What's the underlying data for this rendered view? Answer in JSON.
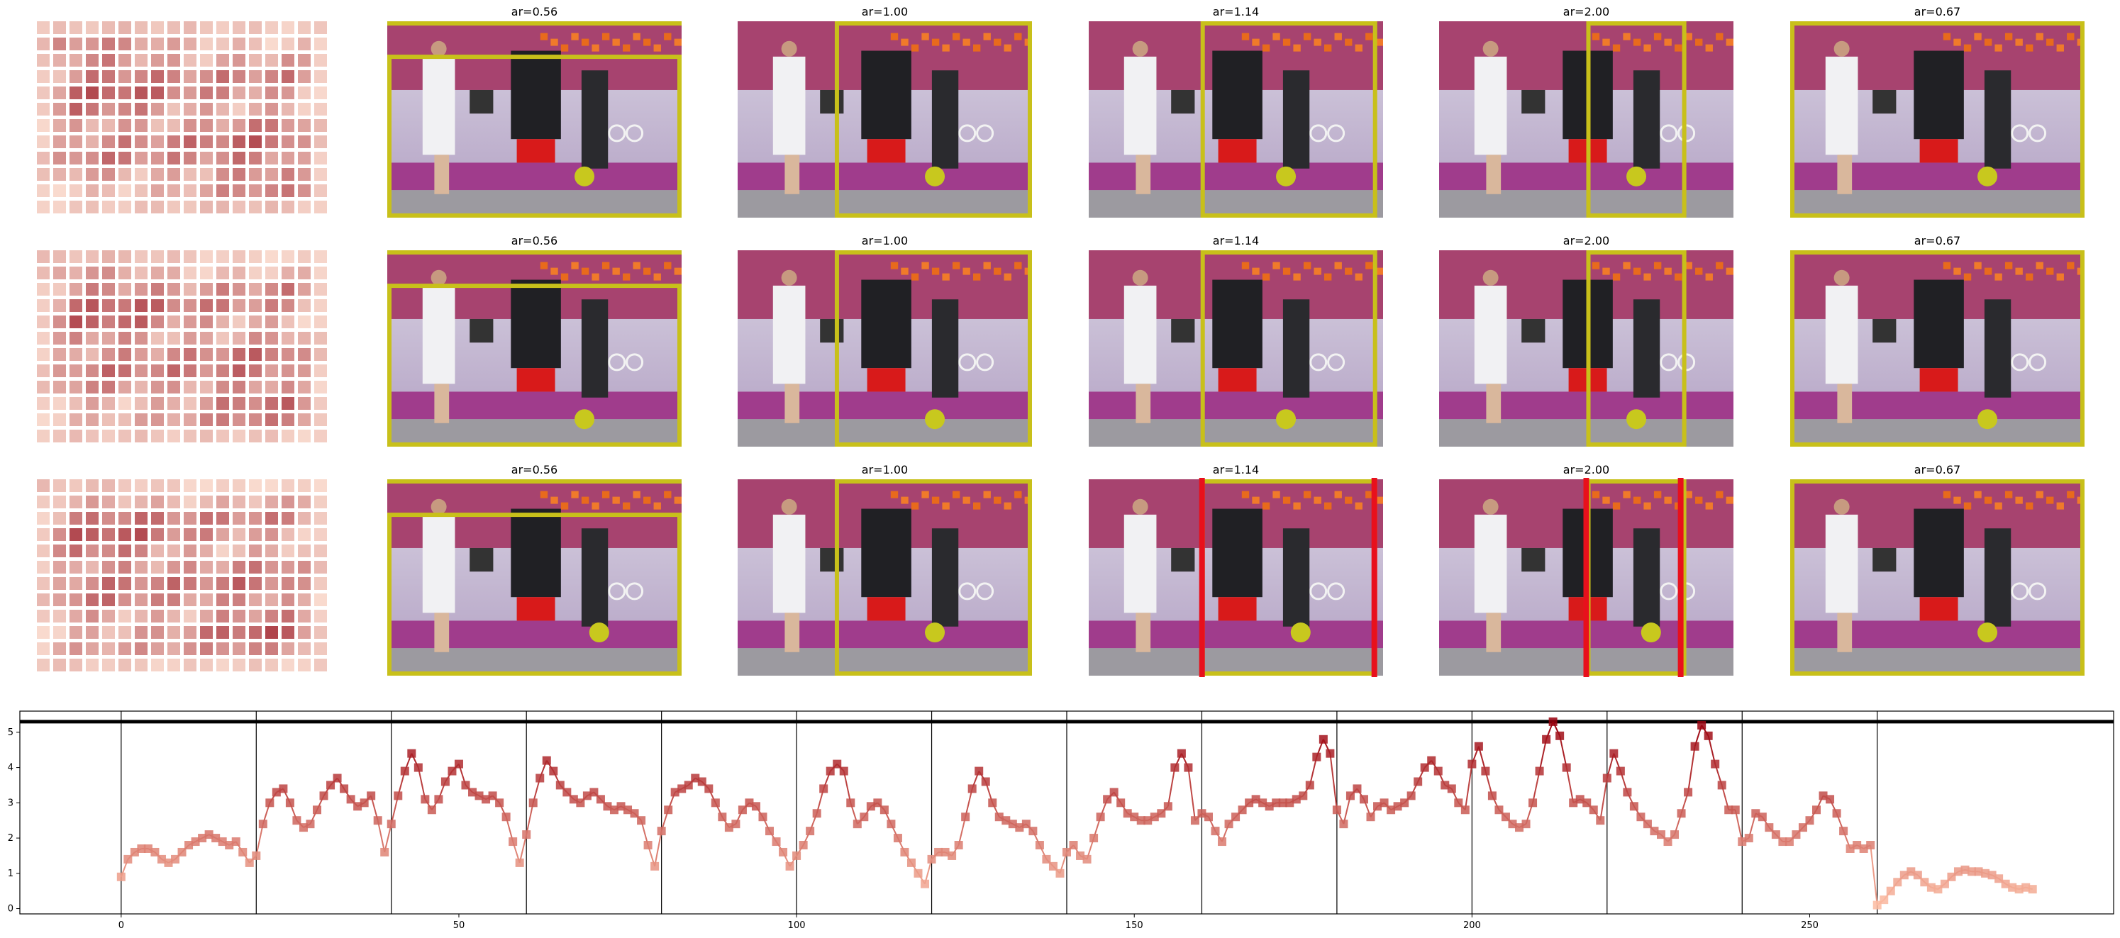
{
  "figure": {
    "panel_titles": [
      "ar=0.56",
      "ar=1.00",
      "ar=1.14",
      "ar=2.00",
      "ar=0.67"
    ],
    "rows": 3,
    "colors": {
      "crop_box": "#c8c01a",
      "marker_dot": "#c8c81e",
      "red_box_edge": "#e8101c",
      "heatmap_low": "#fde3d6",
      "heatmap_high": "#a32a35",
      "series_low": "#fcbba1",
      "series_high": "#99000d"
    }
  },
  "chart_data": {
    "type": "line",
    "title": "",
    "xlabel": "",
    "ylabel": "",
    "xlim": [
      -15,
      295
    ],
    "ylim": [
      -0.15,
      5.6
    ],
    "xticks": [
      0,
      50,
      100,
      150,
      200,
      250
    ],
    "yticks": [
      0,
      1,
      2,
      3,
      4,
      5
    ],
    "segment_boundaries": [
      0,
      20,
      40,
      60,
      80,
      100,
      120,
      140,
      160,
      180,
      200,
      220,
      240,
      260
    ],
    "horizontal_rule_y": 5.3,
    "marker": "square",
    "color_scale": "value-mapped reds",
    "x_start": 0,
    "x_step": 1,
    "values": [
      0.9,
      1.4,
      1.6,
      1.7,
      1.7,
      1.6,
      1.4,
      1.3,
      1.4,
      1.6,
      1.8,
      1.9,
      2.0,
      2.1,
      2.0,
      1.9,
      1.8,
      1.9,
      1.6,
      1.3,
      1.5,
      2.4,
      3.0,
      3.3,
      3.4,
      3.0,
      2.5,
      2.3,
      2.4,
      2.8,
      3.2,
      3.5,
      3.7,
      3.4,
      3.1,
      2.9,
      3.0,
      3.2,
      2.5,
      1.6,
      2.4,
      3.2,
      3.9,
      4.4,
      4.0,
      3.1,
      2.8,
      3.1,
      3.6,
      3.9,
      4.1,
      3.5,
      3.3,
      3.2,
      3.1,
      3.2,
      3.0,
      2.6,
      1.9,
      1.3,
      2.1,
      3.0,
      3.7,
      4.2,
      3.9,
      3.5,
      3.3,
      3.1,
      3.0,
      3.2,
      3.3,
      3.1,
      2.9,
      2.8,
      2.9,
      2.8,
      2.7,
      2.5,
      1.8,
      1.2,
      2.2,
      2.8,
      3.3,
      3.4,
      3.5,
      3.7,
      3.6,
      3.4,
      3.0,
      2.6,
      2.3,
      2.4,
      2.8,
      3.0,
      2.9,
      2.6,
      2.2,
      1.9,
      1.6,
      1.2,
      1.5,
      1.8,
      2.2,
      2.7,
      3.4,
      3.9,
      4.1,
      3.9,
      3.0,
      2.4,
      2.6,
      2.9,
      3.0,
      2.8,
      2.4,
      2.0,
      1.6,
      1.3,
      1.0,
      0.7,
      1.4,
      1.6,
      1.6,
      1.5,
      1.8,
      2.6,
      3.4,
      3.9,
      3.6,
      3.0,
      2.6,
      2.5,
      2.4,
      2.3,
      2.4,
      2.2,
      1.8,
      1.4,
      1.2,
      1.0,
      1.6,
      1.8,
      1.5,
      1.4,
      2.0,
      2.6,
      3.1,
      3.3,
      3.0,
      2.7,
      2.6,
      2.5,
      2.5,
      2.6,
      2.7,
      2.9,
      4.0,
      4.4,
      4.0,
      2.5,
      2.7,
      2.6,
      2.2,
      1.9,
      2.4,
      2.6,
      2.8,
      3.0,
      3.1,
      3.0,
      2.9,
      3.0,
      3.0,
      3.0,
      3.1,
      3.2,
      3.5,
      4.3,
      4.8,
      4.4,
      2.8,
      2.4,
      3.2,
      3.4,
      3.1,
      2.6,
      2.9,
      3.0,
      2.8,
      2.9,
      3.0,
      3.2,
      3.6,
      4.0,
      4.2,
      3.9,
      3.5,
      3.4,
      3.0,
      2.8,
      4.1,
      4.6,
      3.9,
      3.2,
      2.8,
      2.6,
      2.4,
      2.3,
      2.4,
      3.0,
      3.9,
      4.8,
      5.3,
      4.9,
      4.0,
      3.0,
      3.1,
      3.0,
      2.8,
      2.5,
      3.7,
      4.4,
      3.9,
      3.3,
      2.9,
      2.6,
      2.4,
      2.2,
      2.1,
      1.9,
      2.1,
      2.7,
      3.3,
      4.6,
      5.2,
      4.9,
      4.1,
      3.5,
      2.8,
      2.8,
      1.9,
      2.0,
      2.7,
      2.6,
      2.3,
      2.1,
      1.9,
      1.9,
      2.1,
      2.3,
      2.5,
      2.8,
      3.2,
      3.1,
      2.7,
      2.2,
      1.7,
      1.8,
      1.7,
      1.8,
      0.1,
      0.25,
      0.5,
      0.75,
      0.95,
      1.05,
      0.95,
      0.75,
      0.6,
      0.55,
      0.7,
      0.9,
      1.05,
      1.1,
      1.05,
      1.05,
      1.0,
      0.95,
      0.85,
      0.7,
      0.6,
      0.55,
      0.6,
      0.55
    ]
  }
}
